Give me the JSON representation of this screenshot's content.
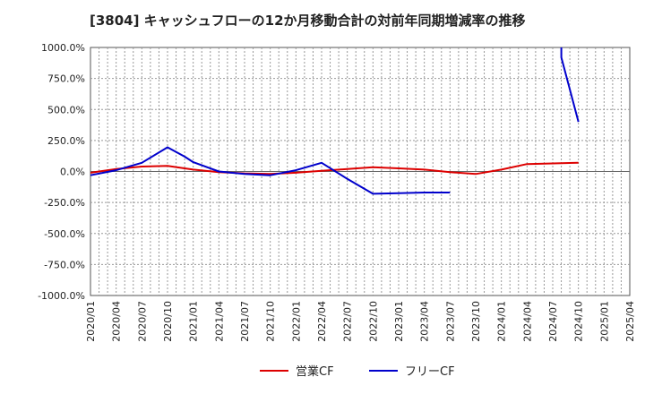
{
  "chart_data": {
    "type": "line",
    "title": "[3804]  キャッシュフローの12か月移動合計の対前年同期増減率の推移",
    "xlabel": "",
    "ylabel": "",
    "ylim": [
      -1000,
      1000
    ],
    "yticks": [
      1000,
      750,
      500,
      250,
      0,
      -250,
      -500,
      -750,
      -1000
    ],
    "ytick_labels": [
      "1000.0%",
      "750.0%",
      "500.0%",
      "250.0%",
      "0.0%",
      "-250.0%",
      "-500.0%",
      "-750.0%",
      "-1000.0%"
    ],
    "x_categories": [
      "2020/01",
      "2020/04",
      "2020/07",
      "2020/10",
      "2021/01",
      "2021/04",
      "2021/07",
      "2021/10",
      "2022/01",
      "2022/04",
      "2022/07",
      "2022/10",
      "2023/01",
      "2023/04",
      "2023/07",
      "2023/10",
      "2024/01",
      "2024/04",
      "2024/07",
      "2024/10",
      "2025/01",
      "2025/04"
    ],
    "legend": [
      "営業CF",
      "フリーCF"
    ],
    "series": [
      {
        "name": "営業CF",
        "color": "#dd0000",
        "points": [
          [
            "2020/01",
            -10
          ],
          [
            "2020/04",
            20
          ],
          [
            "2020/07",
            40
          ],
          [
            "2020/10",
            45
          ],
          [
            "2021/01",
            15
          ],
          [
            "2021/04",
            -5
          ],
          [
            "2021/07",
            -15
          ],
          [
            "2021/10",
            -20
          ],
          [
            "2022/01",
            -10
          ],
          [
            "2022/04",
            5
          ],
          [
            "2022/07",
            20
          ],
          [
            "2022/10",
            35
          ],
          [
            "2023/01",
            25
          ],
          [
            "2023/04",
            15
          ],
          [
            "2023/07",
            -5
          ],
          [
            "2023/10",
            -20
          ],
          [
            "2024/01",
            15
          ],
          [
            "2024/04",
            60
          ],
          [
            "2024/07",
            65
          ],
          [
            "2024/10",
            70
          ]
        ]
      },
      {
        "name": "フリーCF",
        "color": "#0000cc",
        "points": [
          [
            "2020/01",
            -30
          ],
          [
            "2020/04",
            10
          ],
          [
            "2020/07",
            70
          ],
          [
            "2020/10",
            195
          ],
          [
            "2020/12",
            120
          ],
          [
            "2021/01",
            75
          ],
          [
            "2021/04",
            0
          ],
          [
            "2021/07",
            -20
          ],
          [
            "2021/10",
            -30
          ],
          [
            "2022/01",
            10
          ],
          [
            "2022/04",
            70
          ],
          [
            "2022/07",
            -60
          ],
          [
            "2022/10",
            -180
          ],
          [
            "2023/01",
            -175
          ],
          [
            "2023/04",
            -170
          ],
          [
            "2023/07",
            -170
          ]
        ]
      },
      {
        "name": "フリーCF",
        "color": "#0000cc",
        "points": [
          [
            "2024/08",
            1000
          ],
          [
            "2024/08",
            920
          ],
          [
            "2024/10",
            400
          ]
        ]
      }
    ]
  }
}
